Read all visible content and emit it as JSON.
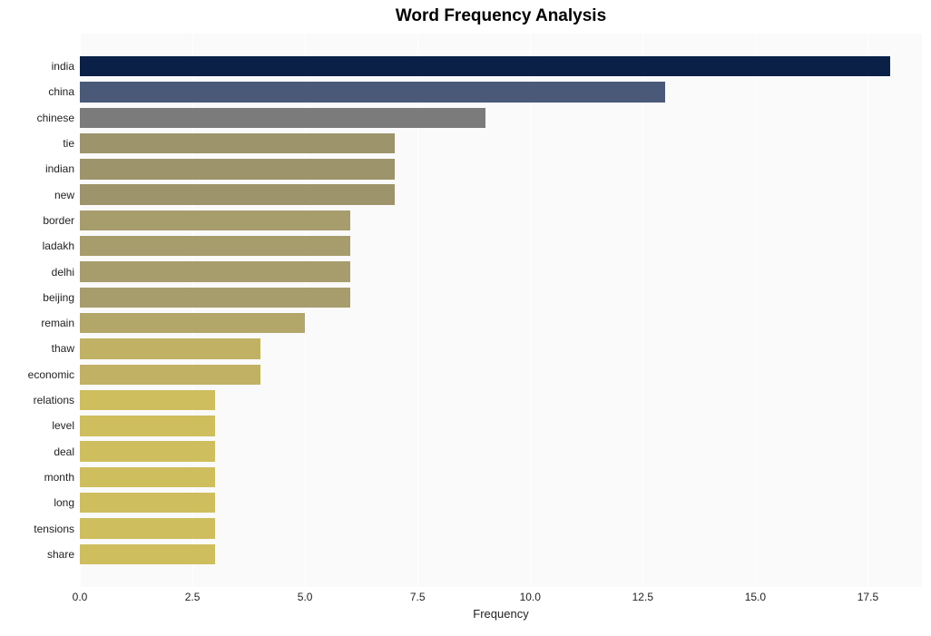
{
  "chart": {
    "type": "bar-horizontal",
    "title": "Word Frequency Analysis",
    "title_fontsize": 19,
    "title_fontweight": "bold",
    "title_color": "#000000",
    "background_color": "#ffffff",
    "plot_bg_color": "#fafafa",
    "grid_color": "#ffffff",
    "xlabel": "Frequency",
    "xlabel_fontsize": 13,
    "ylabel_fontsize": 12,
    "tick_fontsize": 12,
    "xlim": [
      0,
      18.7
    ],
    "xticks": [
      0.0,
      2.5,
      5.0,
      7.5,
      10.0,
      12.5,
      15.0,
      17.5
    ],
    "xtick_labels": [
      "0.0",
      "2.5",
      "5.0",
      "7.5",
      "10.0",
      "12.5",
      "15.0",
      "17.5"
    ],
    "bar_height_ratio": 0.79,
    "categories": [
      "india",
      "china",
      "chinese",
      "tie",
      "indian",
      "new",
      "border",
      "ladakh",
      "delhi",
      "beijing",
      "remain",
      "thaw",
      "economic",
      "relations",
      "level",
      "deal",
      "month",
      "long",
      "tensions",
      "share"
    ],
    "values": [
      18,
      13,
      9,
      7,
      7,
      7,
      6,
      6,
      6,
      6,
      5,
      4,
      4,
      3,
      3,
      3,
      3,
      3,
      3,
      3
    ],
    "bar_colors": [
      "#0a2046",
      "#495977",
      "#7b7b7b",
      "#9d946c",
      "#9d946c",
      "#9d946c",
      "#a79c6c",
      "#a79c6c",
      "#a79c6c",
      "#a79c6c",
      "#b2a668",
      "#c0b164",
      "#c0b164",
      "#cfbe5d",
      "#cfbe5d",
      "#cfbe5d",
      "#cfbe5d",
      "#cfbe5d",
      "#cfbe5d",
      "#cfbe5d"
    ]
  }
}
